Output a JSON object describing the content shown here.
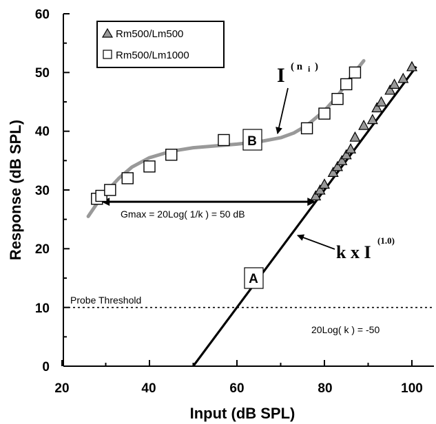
{
  "chart_data": {
    "type": "line",
    "xlabel": "Input (dB SPL)",
    "ylabel": "Response (dB SPL)",
    "xlim": [
      20,
      105
    ],
    "ylim": [
      0,
      60
    ],
    "x_ticks": [
      "20",
      "40",
      "60",
      "80",
      "100"
    ],
    "y_ticks": [
      "0",
      "10",
      "20",
      "30",
      "40",
      "50",
      "60"
    ],
    "grid": false,
    "legend_position": "top-left",
    "series": [
      {
        "name": "Rm500/Lm500",
        "marker": "triangle",
        "color": "#999999",
        "x": [
          78,
          79,
          80,
          82,
          83,
          84,
          85,
          86,
          87,
          89,
          91,
          92,
          93,
          95,
          96,
          98,
          100
        ],
        "y": [
          29,
          30,
          31,
          33,
          34,
          35,
          36,
          37,
          39,
          41,
          42,
          44,
          45,
          47,
          48,
          49,
          51
        ]
      },
      {
        "name": "Rm500/Lm1000",
        "marker": "square",
        "color": "#ffffff",
        "x": [
          28,
          29,
          31,
          35,
          40,
          45,
          57,
          76,
          80,
          83,
          85,
          87
        ],
        "y": [
          28.5,
          29,
          30,
          32,
          34,
          36,
          38.5,
          40.5,
          43,
          45.5,
          48,
          50
        ]
      }
    ],
    "curves": [
      {
        "id": "I_curve",
        "color": "#999999",
        "x": [
          26,
          28,
          30,
          33,
          36,
          40,
          45,
          50,
          55,
          60,
          65,
          70,
          73,
          76,
          80,
          83,
          86,
          89
        ],
        "y": [
          25.5,
          27.7,
          29.6,
          32,
          33.9,
          35.5,
          36.6,
          37.2,
          37.5,
          37.8,
          38.2,
          38.9,
          39.7,
          41,
          43.5,
          46,
          49.2,
          52
        ]
      },
      {
        "id": "k_line",
        "color": "#000000",
        "x": [
          50,
          101
        ],
        "y": [
          0,
          51
        ]
      }
    ],
    "reference_lines": [
      {
        "label": "Probe Threshold",
        "y": 10,
        "style": "dotted"
      }
    ],
    "arrows": [
      {
        "label": "Gmax = 20Log( 1/k ) = 50 dB",
        "x_from": 29,
        "x_to": 78,
        "y": 28
      }
    ],
    "annotations": {
      "box_A": "A",
      "box_B": "B",
      "I_formula_base": "I",
      "I_formula_exp": "( n",
      "I_formula_sub": "i",
      "I_formula_close": ")",
      "k_formula_base": "k x I",
      "k_formula_exp": "(1.0)",
      "log_k": "20Log( k ) = -50"
    }
  }
}
